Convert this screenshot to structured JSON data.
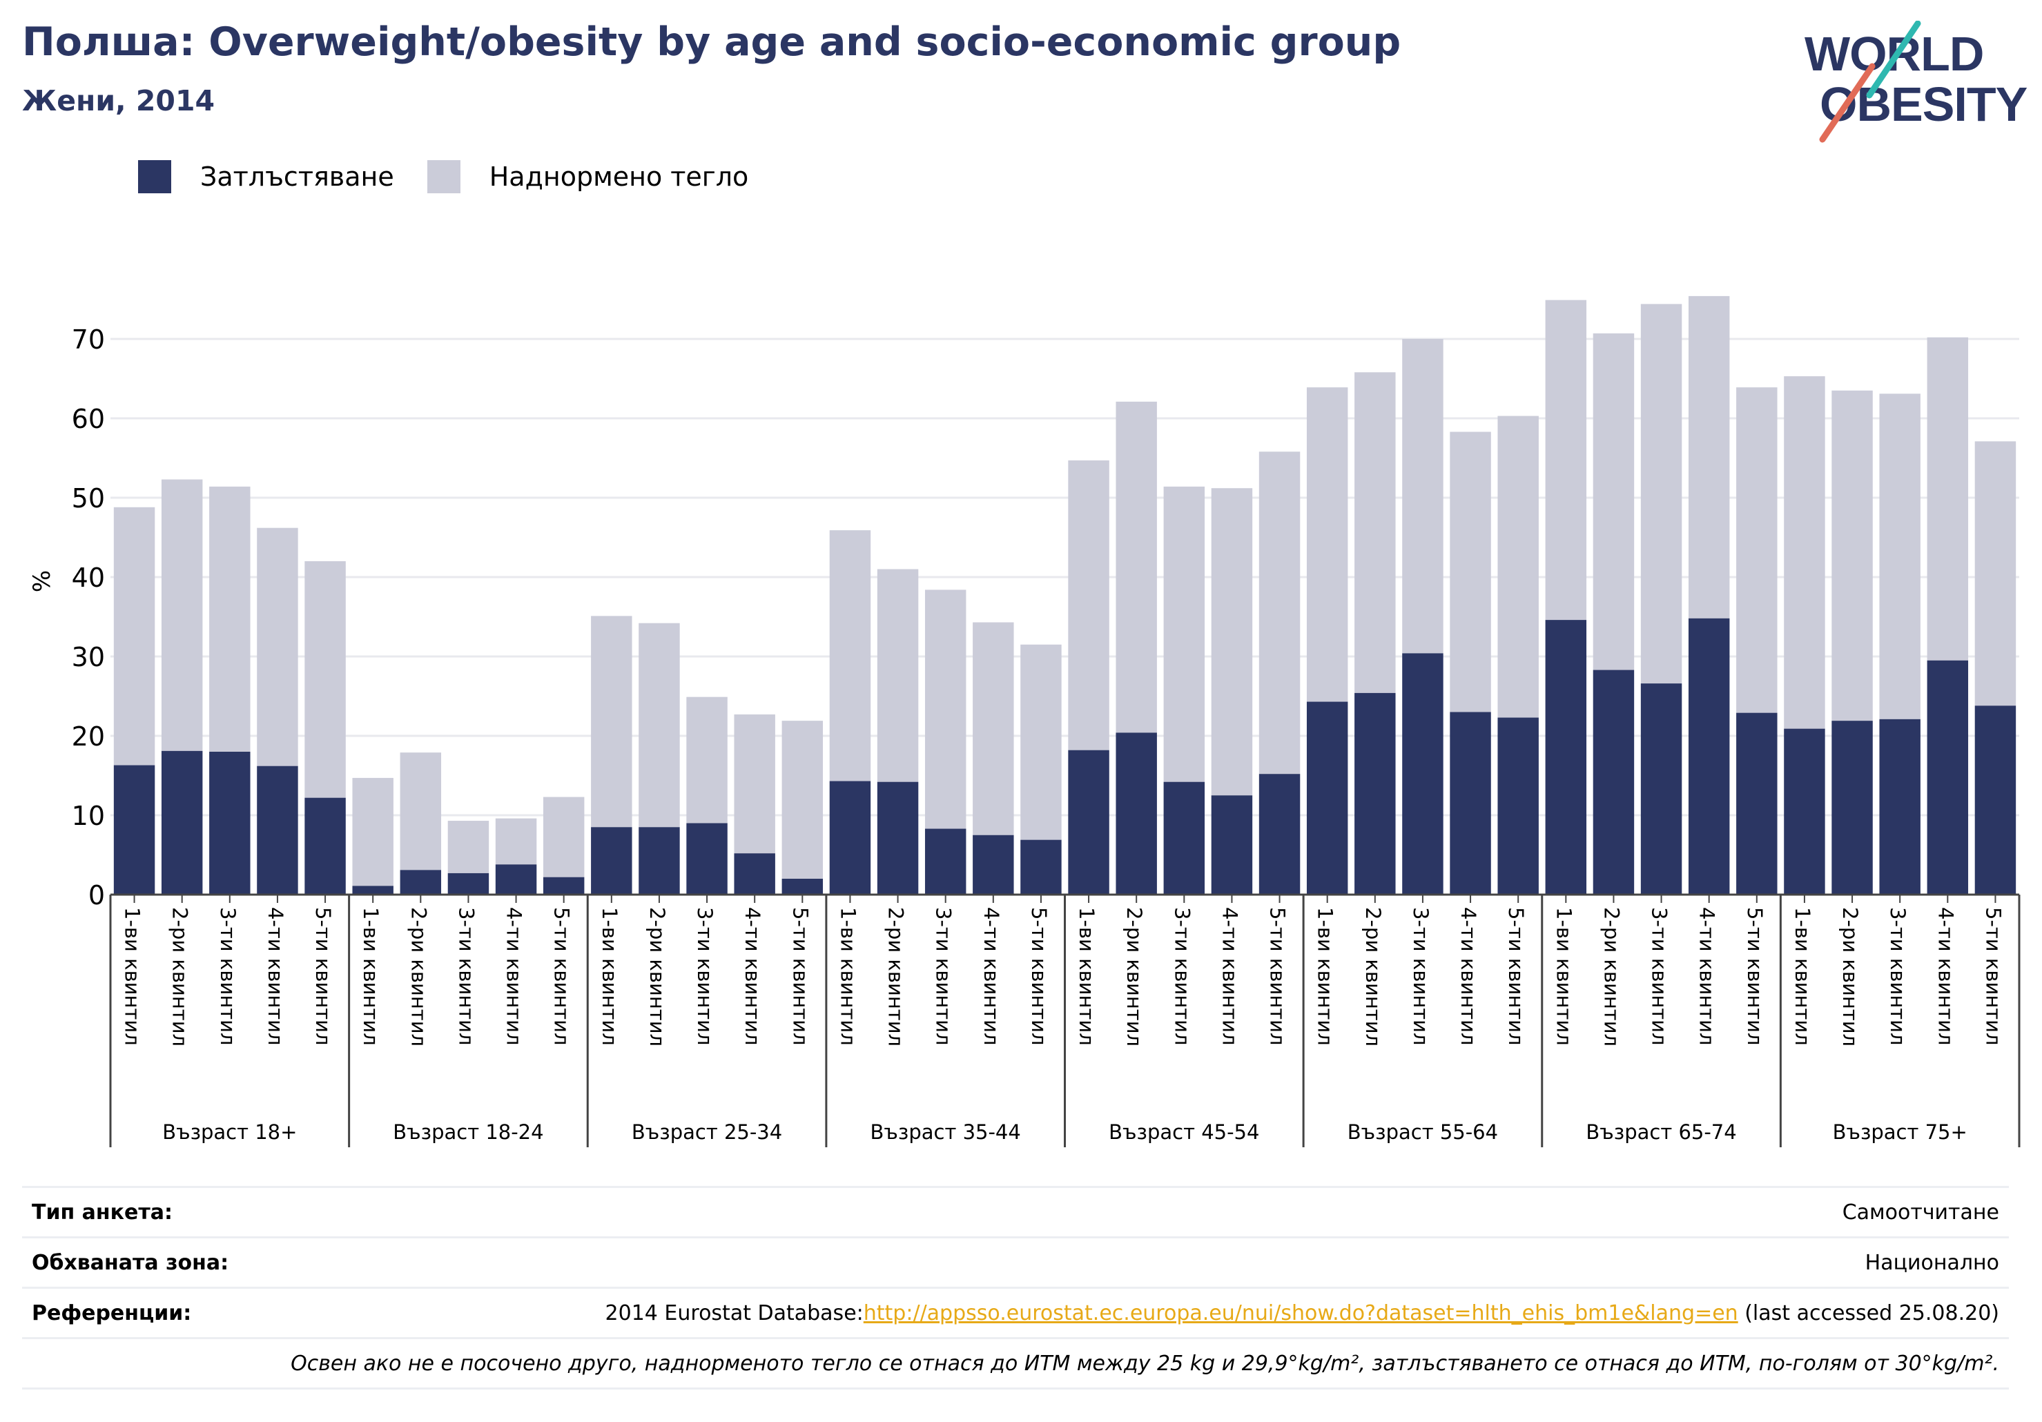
{
  "header": {
    "title": "Полша: Overweight/obesity by age and socio-economic group",
    "subtitle": "Жени, 2014"
  },
  "logo": {
    "line1": "WORLD",
    "line2": "OBESITY"
  },
  "colors": {
    "obesity": "#2b3663",
    "overweight": "#cbccd9",
    "title": "#2b3663",
    "link": "#e7a917"
  },
  "chart_data": {
    "type": "bar",
    "stacked": true,
    "ylabel": "%",
    "ylim": [
      0,
      80
    ],
    "yticks": [
      0,
      10,
      20,
      30,
      40,
      50,
      60,
      70
    ],
    "grid": true,
    "legend_position": "top-left",
    "groups": [
      "Възраст 18+",
      "Възраст 18-24",
      "Възраст 25-34",
      "Възраст 35-44",
      "Възраст 45-54",
      "Възраст 55-64",
      "Възраст 65-74",
      "Възраст 75+"
    ],
    "categories": [
      "1-ви квинтил",
      "2-ри квинтил",
      "3-ти квинтил",
      "4-ти квинтил",
      "5-ти квинтил"
    ],
    "series": [
      {
        "name": "Затлъстяване",
        "values": [
          [
            16.3,
            18.1,
            18.0,
            16.2,
            12.2
          ],
          [
            1.1,
            3.1,
            2.7,
            3.8,
            2.2
          ],
          [
            8.5,
            8.5,
            9.0,
            5.2,
            2.0
          ],
          [
            14.3,
            14.2,
            8.3,
            7.5,
            6.9
          ],
          [
            18.2,
            20.4,
            14.2,
            12.5,
            15.2
          ],
          [
            24.3,
            25.4,
            30.4,
            23.0,
            22.3
          ],
          [
            34.6,
            28.3,
            26.6,
            34.8,
            22.9
          ],
          [
            20.9,
            21.9,
            22.1,
            29.5,
            23.8
          ]
        ]
      },
      {
        "name": "Наднормено тегло",
        "values": [
          [
            32.5,
            34.2,
            33.4,
            30.0,
            29.8
          ],
          [
            13.6,
            14.8,
            6.6,
            5.8,
            10.1
          ],
          [
            26.6,
            25.7,
            15.9,
            17.5,
            19.9
          ],
          [
            31.6,
            26.8,
            30.1,
            26.8,
            24.6
          ],
          [
            36.5,
            41.7,
            37.2,
            38.7,
            40.6
          ],
          [
            39.6,
            40.4,
            39.6,
            35.3,
            38.0
          ],
          [
            40.3,
            42.4,
            47.8,
            40.6,
            41.0
          ],
          [
            44.4,
            41.6,
            41.0,
            40.7,
            33.3
          ]
        ]
      }
    ]
  },
  "meta": {
    "survey_key": "Тип анкета:",
    "survey_val": "Самоотчитане",
    "area_key": "Обхваната зона:",
    "area_val": "Национално",
    "ref_key": "Референции:",
    "ref_prefix": "2014 Eurostat Database:",
    "ref_link": "http://appsso.eurostat.ec.europa.eu/nui/show.do?dataset=hlth_ehis_bm1e&lang=en",
    "ref_suffix": " (last accessed 25.08.20)",
    "note": "Освен ако не е посочено друго, наднорменото тегло се отнася до ИТМ между 25 kg и 29,9°kg/m², затлъстяването се отнася до ИТМ, по-голям от 30°kg/m²."
  }
}
